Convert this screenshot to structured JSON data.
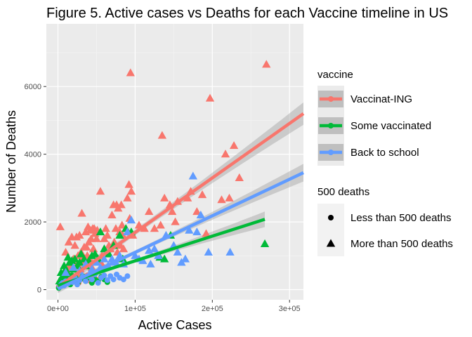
{
  "chart_data": {
    "type": "scatter",
    "title": "Figure 5. Active cases vs Deaths for each Vaccine timeline in US",
    "xlabel": "Active Cases",
    "ylabel": "Number of Deaths",
    "xlim": [
      -15000,
      318000
    ],
    "ylim": [
      -300,
      7850
    ],
    "x_ticks": [
      0,
      100000,
      200000,
      300000
    ],
    "x_tick_labels": [
      "0e+00",
      "1e+05",
      "2e+05",
      "3e+05"
    ],
    "y_ticks": [
      0,
      2000,
      4000,
      6000
    ],
    "y_tick_labels": [
      "0",
      "2000",
      "4000",
      "6000"
    ],
    "grid": true,
    "legend_position": "right",
    "legends": [
      {
        "title": "vaccine",
        "entries": [
          "Vaccinat-ING",
          "Some vaccinated",
          "Back to school"
        ]
      },
      {
        "title": "500 deaths",
        "entries": [
          "Less than 500 deaths",
          "More than 500 deaths"
        ]
      }
    ],
    "colors": {
      "Vaccinat-ING": "#f8766d",
      "Some vaccinated": "#00ba38",
      "Back to school": "#619cff"
    },
    "series": [
      {
        "name": "Vaccinat-ING",
        "fit": {
          "x_range": [
            0,
            318000
          ],
          "intercept": 80,
          "slope": 0.0161,
          "ci_halfwidth": [
            160,
            80,
            330
          ]
        },
        "points": [
          [
            3000,
            1850,
            "tri"
          ],
          [
            10000,
            1100,
            "tri"
          ],
          [
            14000,
            1400,
            "tri"
          ],
          [
            18000,
            1550,
            "tri"
          ],
          [
            22000,
            1300,
            "tri"
          ],
          [
            24000,
            1550,
            "tri"
          ],
          [
            26000,
            1000,
            "tri"
          ],
          [
            28000,
            1600,
            "tri"
          ],
          [
            30000,
            1100,
            "tri"
          ],
          [
            31000,
            2250,
            "tri"
          ],
          [
            33000,
            950,
            "tri"
          ],
          [
            34000,
            1250,
            "tri"
          ],
          [
            36000,
            1700,
            "tri"
          ],
          [
            37000,
            1250,
            "tri"
          ],
          [
            38000,
            1000,
            "tri"
          ],
          [
            39000,
            1850,
            "tri"
          ],
          [
            40000,
            1400,
            "tri"
          ],
          [
            42000,
            1750,
            "tri"
          ],
          [
            43000,
            1500,
            "tri"
          ],
          [
            45000,
            1800,
            "tri"
          ],
          [
            46000,
            1200,
            "tri"
          ],
          [
            47000,
            1800,
            "tri"
          ],
          [
            48000,
            1650,
            "tri"
          ],
          [
            50000,
            1500,
            "tri"
          ],
          [
            51000,
            1750,
            "tri"
          ],
          [
            55000,
            2900,
            "tri"
          ],
          [
            57000,
            1000,
            "tri"
          ],
          [
            60000,
            1500,
            "tri"
          ],
          [
            62000,
            1800,
            "tri"
          ],
          [
            64000,
            1600,
            "tri"
          ],
          [
            66000,
            1300,
            "tri"
          ],
          [
            68000,
            1200,
            "tri"
          ],
          [
            70000,
            2200,
            "tri"
          ],
          [
            72000,
            2500,
            "tri"
          ],
          [
            73000,
            1400,
            "tri"
          ],
          [
            75000,
            1800,
            "tri"
          ],
          [
            76000,
            2500,
            "tri"
          ],
          [
            77000,
            1100,
            "tri"
          ],
          [
            78000,
            2400,
            "tri"
          ],
          [
            80000,
            1700,
            "tri"
          ],
          [
            81000,
            1300,
            "tri"
          ],
          [
            82000,
            2500,
            "tri"
          ],
          [
            83000,
            1900,
            "tri"
          ],
          [
            84000,
            1600,
            "tri"
          ],
          [
            85000,
            1200,
            "tri"
          ],
          [
            88000,
            1800,
            "tri"
          ],
          [
            90000,
            2700,
            "tri"
          ],
          [
            92000,
            3100,
            "tri"
          ],
          [
            93000,
            2100,
            "tri"
          ],
          [
            94000,
            6400,
            "tri"
          ],
          [
            95000,
            2900,
            "tri"
          ],
          [
            97000,
            1600,
            "tri"
          ],
          [
            105000,
            1900,
            "tri"
          ],
          [
            112000,
            1800,
            "tri"
          ],
          [
            118000,
            2300,
            "tri"
          ],
          [
            125000,
            1800,
            "tri"
          ],
          [
            133000,
            1900,
            "tri"
          ],
          [
            135000,
            4550,
            "tri"
          ],
          [
            138000,
            2700,
            "tri"
          ],
          [
            145000,
            2500,
            "tri"
          ],
          [
            148000,
            2300,
            "tri"
          ],
          [
            152000,
            2000,
            "tri"
          ],
          [
            155000,
            2600,
            "tri"
          ],
          [
            168000,
            2700,
            "tri"
          ],
          [
            172000,
            2900,
            "tri"
          ],
          [
            180000,
            2300,
            "tri"
          ],
          [
            187000,
            2800,
            "tri"
          ],
          [
            192000,
            1650,
            "tri"
          ],
          [
            197000,
            5650,
            "tri"
          ],
          [
            212000,
            2650,
            "tri"
          ],
          [
            217000,
            4000,
            "tri"
          ],
          [
            222000,
            2700,
            "tri"
          ],
          [
            228000,
            4250,
            "tri"
          ],
          [
            235000,
            3300,
            "tri"
          ],
          [
            270000,
            6650,
            "tri"
          ],
          [
            8000,
            300,
            "tri"
          ],
          [
            12000,
            600,
            "tri"
          ],
          [
            16000,
            700,
            "tri"
          ],
          [
            20000,
            900,
            "tri"
          ],
          [
            25000,
            750,
            "tri"
          ],
          [
            29000,
            600,
            "tri"
          ],
          [
            32000,
            800,
            "tri"
          ],
          [
            35000,
            700,
            "tri"
          ],
          [
            41000,
            900,
            "tri"
          ],
          [
            44000,
            650,
            "tri"
          ],
          [
            53000,
            850,
            "tri"
          ],
          [
            58000,
            700,
            "tri"
          ],
          [
            1000,
            80,
            "dot"
          ],
          [
            3000,
            150,
            "dot"
          ],
          [
            5000,
            250,
            "dot"
          ],
          [
            7000,
            200,
            "dot"
          ],
          [
            9000,
            350,
            "dot"
          ],
          [
            11000,
            300,
            "dot"
          ],
          [
            13000,
            200,
            "dot"
          ],
          [
            15000,
            400,
            "dot"
          ],
          [
            17000,
            350,
            "dot"
          ],
          [
            19000,
            250,
            "dot"
          ],
          [
            21000,
            380,
            "dot"
          ],
          [
            23000,
            300,
            "dot"
          ],
          [
            25000,
            420,
            "dot"
          ],
          [
            27000,
            200,
            "dot"
          ],
          [
            30000,
            350,
            "dot"
          ],
          [
            34000,
            300,
            "dot"
          ],
          [
            38000,
            420,
            "dot"
          ],
          [
            42000,
            250,
            "dot"
          ],
          [
            46000,
            380,
            "dot"
          ],
          [
            50000,
            300,
            "dot"
          ]
        ]
      },
      {
        "name": "Some vaccinated",
        "fit": {
          "x_range": [
            0,
            268000
          ],
          "intercept": 120,
          "slope": 0.0073,
          "ci_halfwidth": [
            110,
            45,
            230
          ]
        },
        "points": [
          [
            2000,
            250,
            "tri"
          ],
          [
            4000,
            500,
            "tri"
          ],
          [
            6000,
            400,
            "tri"
          ],
          [
            8000,
            700,
            "tri"
          ],
          [
            10000,
            600,
            "tri"
          ],
          [
            12000,
            500,
            "tri"
          ],
          [
            13000,
            950,
            "tri"
          ],
          [
            15000,
            800,
            "tri"
          ],
          [
            18000,
            850,
            "tri"
          ],
          [
            20000,
            600,
            "tri"
          ],
          [
            22000,
            900,
            "tri"
          ],
          [
            25000,
            700,
            "tri"
          ],
          [
            28000,
            800,
            "tri"
          ],
          [
            30000,
            1050,
            "tri"
          ],
          [
            34000,
            900,
            "tri"
          ],
          [
            36000,
            700,
            "tri"
          ],
          [
            40000,
            850,
            "tri"
          ],
          [
            44000,
            1000,
            "tri"
          ],
          [
            48000,
            1050,
            "tri"
          ],
          [
            52000,
            900,
            "tri"
          ],
          [
            55000,
            1700,
            "tri"
          ],
          [
            60000,
            1200,
            "tri"
          ],
          [
            66000,
            1050,
            "tri"
          ],
          [
            72000,
            1300,
            "tri"
          ],
          [
            80000,
            1600,
            "tri"
          ],
          [
            84000,
            900,
            "tri"
          ],
          [
            88000,
            1800,
            "tri"
          ],
          [
            95000,
            1700,
            "tri"
          ],
          [
            132000,
            950,
            "tri"
          ],
          [
            138000,
            900,
            "tri"
          ],
          [
            146000,
            1600,
            "tri"
          ],
          [
            268000,
            1350,
            "tri"
          ],
          [
            1000,
            50,
            "dot"
          ],
          [
            2000,
            120,
            "dot"
          ],
          [
            3000,
            200,
            "dot"
          ],
          [
            4000,
            300,
            "dot"
          ],
          [
            5000,
            150,
            "dot"
          ],
          [
            6000,
            250,
            "dot"
          ],
          [
            7000,
            350,
            "dot"
          ],
          [
            8000,
            180,
            "dot"
          ],
          [
            9000,
            280,
            "dot"
          ],
          [
            10000,
            400,
            "dot"
          ],
          [
            12000,
            220,
            "dot"
          ],
          [
            14000,
            320,
            "dot"
          ],
          [
            16000,
            150,
            "dot"
          ],
          [
            18000,
            420,
            "dot"
          ],
          [
            20000,
            260,
            "dot"
          ],
          [
            23000,
            350,
            "dot"
          ],
          [
            26000,
            200,
            "dot"
          ],
          [
            29000,
            300,
            "dot"
          ],
          [
            32000,
            400,
            "dot"
          ],
          [
            36000,
            250,
            "dot"
          ],
          [
            40000,
            350,
            "dot"
          ],
          [
            44000,
            200,
            "dot"
          ],
          [
            48000,
            300,
            "dot"
          ],
          [
            52000,
            250,
            "dot"
          ],
          [
            56000,
            380,
            "dot"
          ],
          [
            60000,
            300,
            "dot"
          ],
          [
            64000,
            220,
            "dot"
          ]
        ]
      },
      {
        "name": "Back to school",
        "fit": {
          "x_range": [
            0,
            318000
          ],
          "intercept": 20,
          "slope": 0.0108,
          "ci_halfwidth": [
            120,
            55,
            260
          ]
        },
        "points": [
          [
            10000,
            500,
            "tri"
          ],
          [
            20000,
            650,
            "tri"
          ],
          [
            28000,
            550,
            "tri"
          ],
          [
            36000,
            750,
            "tri"
          ],
          [
            44000,
            600,
            "tri"
          ],
          [
            50000,
            800,
            "tri"
          ],
          [
            55000,
            650,
            "tri"
          ],
          [
            60000,
            900,
            "tri"
          ],
          [
            65000,
            700,
            "tri"
          ],
          [
            70000,
            900,
            "tri"
          ],
          [
            75000,
            800,
            "tri"
          ],
          [
            80000,
            1000,
            "tri"
          ],
          [
            85000,
            750,
            "tri"
          ],
          [
            90000,
            1700,
            "tri"
          ],
          [
            95000,
            2050,
            "tri"
          ],
          [
            100000,
            1000,
            "tri"
          ],
          [
            105000,
            900,
            "tri"
          ],
          [
            110000,
            850,
            "tri"
          ],
          [
            118000,
            1150,
            "tri"
          ],
          [
            120000,
            750,
            "tri"
          ],
          [
            125000,
            1200,
            "tri"
          ],
          [
            130000,
            1000,
            "tri"
          ],
          [
            140000,
            1600,
            "tri"
          ],
          [
            150000,
            1300,
            "tri"
          ],
          [
            155000,
            1100,
            "tri"
          ],
          [
            160000,
            800,
            "tri"
          ],
          [
            165000,
            900,
            "tri"
          ],
          [
            170000,
            1750,
            "tri"
          ],
          [
            175000,
            3350,
            "tri"
          ],
          [
            180000,
            1700,
            "tri"
          ],
          [
            185000,
            2200,
            "tri"
          ],
          [
            195000,
            1100,
            "tri"
          ],
          [
            223000,
            1100,
            "tri"
          ],
          [
            2000,
            100,
            "dot"
          ],
          [
            4000,
            150,
            "dot"
          ],
          [
            6000,
            200,
            "dot"
          ],
          [
            8000,
            120,
            "dot"
          ],
          [
            10000,
            250,
            "dot"
          ],
          [
            13000,
            180,
            "dot"
          ],
          [
            16000,
            300,
            "dot"
          ],
          [
            19000,
            220,
            "dot"
          ],
          [
            22000,
            350,
            "dot"
          ],
          [
            25000,
            150,
            "dot"
          ],
          [
            28000,
            280,
            "dot"
          ],
          [
            32000,
            380,
            "dot"
          ],
          [
            36000,
            250,
            "dot"
          ],
          [
            40000,
            400,
            "dot"
          ],
          [
            44000,
            300,
            "dot"
          ],
          [
            48000,
            450,
            "dot"
          ],
          [
            52000,
            200,
            "dot"
          ],
          [
            56000,
            350,
            "dot"
          ],
          [
            60000,
            420,
            "dot"
          ],
          [
            64000,
            280,
            "dot"
          ],
          [
            68000,
            400,
            "dot"
          ],
          [
            72000,
            300,
            "dot"
          ],
          [
            76000,
            450,
            "dot"
          ],
          [
            80000,
            350,
            "dot"
          ],
          [
            85000,
            300,
            "dot"
          ],
          [
            90000,
            400,
            "dot"
          ]
        ]
      }
    ]
  }
}
